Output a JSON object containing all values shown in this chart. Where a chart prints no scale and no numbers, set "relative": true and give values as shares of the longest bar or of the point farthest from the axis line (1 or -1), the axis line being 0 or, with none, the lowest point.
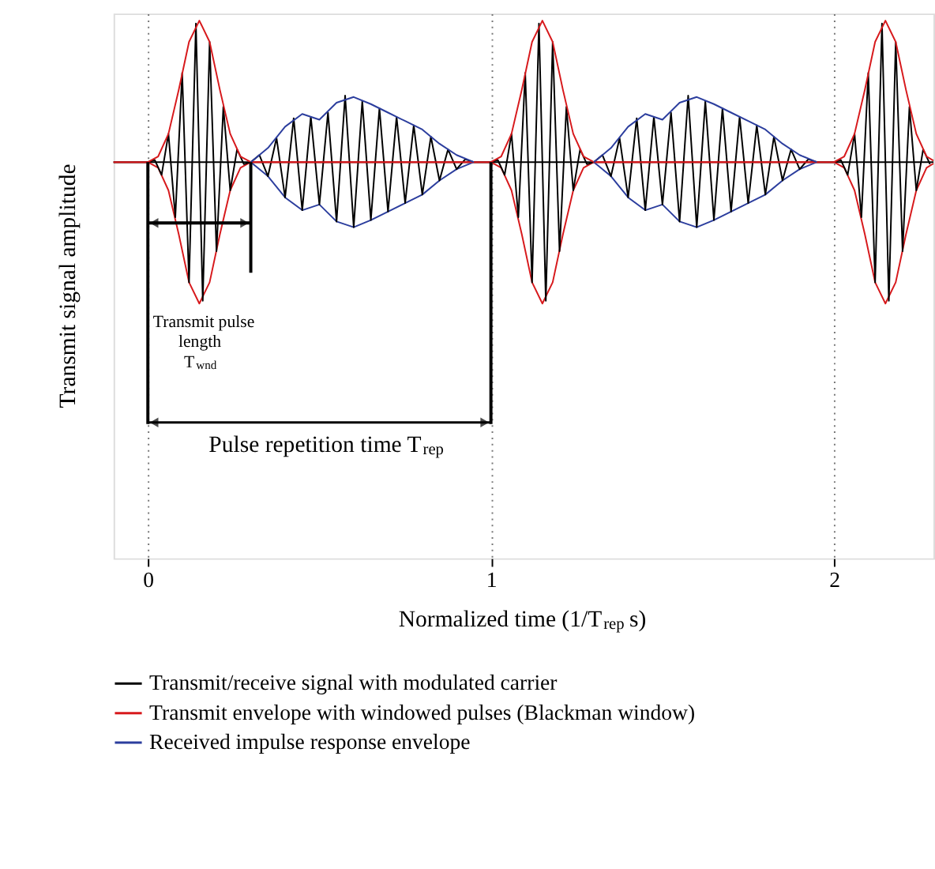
{
  "chart_data": {
    "type": "line",
    "relative": true,
    "xlabel": "Normalized time (1/T$_{rep}$ s)",
    "ylabel": "Transmit signal amplitude",
    "xlim": [
      -0.1,
      2.29
    ],
    "xticks": [
      {
        "value": 0,
        "label": "0"
      },
      {
        "value": 1,
        "label": "1"
      },
      {
        "value": 2,
        "label": "2"
      }
    ],
    "grid": "x",
    "legend": "bottom",
    "line_style": "solid",
    "marker": "none",
    "series": [
      {
        "name": "Transmit/receive signal with modulated carrier",
        "color": "#000000",
        "x": [
          -0.1,
          0,
          0.02,
          0.04,
          0.06,
          0.08,
          0.1,
          0.12,
          0.14,
          0.16,
          0.18,
          0.2,
          0.22,
          0.24,
          0.26,
          0.28,
          0.3,
          0.325,
          0.35,
          0.375,
          0.4,
          0.425,
          0.45,
          0.475,
          0.5,
          0.525,
          0.55,
          0.575,
          0.6,
          0.625,
          0.65,
          0.675,
          0.7,
          0.725,
          0.75,
          0.775,
          0.8,
          0.825,
          0.85,
          0.875,
          0.9,
          0.925,
          0.95,
          1.0,
          1.02,
          1.04,
          1.06,
          1.08,
          1.1,
          1.12,
          1.14,
          1.16,
          1.18,
          1.2,
          1.22,
          1.24,
          1.26,
          1.28,
          1.3,
          1.325,
          1.35,
          1.375,
          1.4,
          1.425,
          1.45,
          1.475,
          1.5,
          1.525,
          1.55,
          1.575,
          1.6,
          1.625,
          1.65,
          1.675,
          1.7,
          1.725,
          1.75,
          1.775,
          1.8,
          1.825,
          1.85,
          1.875,
          1.9,
          1.925,
          1.95,
          2.0,
          2.02,
          2.04,
          2.06,
          2.08,
          2.1,
          2.12,
          2.14,
          2.16,
          2.18,
          2.2,
          2.22,
          2.24,
          2.26,
          2.28
        ],
        "values": [
          0,
          0,
          0.015,
          -0.09,
          0.2,
          -0.39,
          0.63,
          -0.85,
          0.98,
          -0.98,
          0.85,
          -0.63,
          0.39,
          -0.2,
          0.09,
          -0.015,
          0,
          0.05,
          -0.1,
          0.17,
          -0.25,
          0.31,
          -0.34,
          0.32,
          -0.3,
          0.35,
          -0.42,
          0.47,
          -0.46,
          0.43,
          -0.41,
          0.38,
          -0.35,
          0.32,
          -0.29,
          0.26,
          -0.23,
          0.18,
          -0.13,
          0.09,
          -0.05,
          0.02,
          0,
          0,
          0.015,
          -0.09,
          0.2,
          -0.39,
          0.63,
          -0.85,
          0.98,
          -0.98,
          0.85,
          -0.63,
          0.39,
          -0.2,
          0.09,
          -0.015,
          0,
          0.05,
          -0.1,
          0.17,
          -0.25,
          0.31,
          -0.34,
          0.32,
          -0.3,
          0.35,
          -0.42,
          0.47,
          -0.46,
          0.43,
          -0.41,
          0.38,
          -0.35,
          0.32,
          -0.29,
          0.26,
          -0.23,
          0.18,
          -0.13,
          0.09,
          -0.05,
          0.02,
          0,
          0,
          0.015,
          -0.09,
          0.2,
          -0.39,
          0.63,
          -0.85,
          0.98,
          -0.98,
          0.85,
          -0.63,
          0.39,
          -0.2,
          0.09,
          -0.015
        ]
      },
      {
        "name": "Transmit envelope with windowed pulses (Blackman window)",
        "color": "#d7191c",
        "x": [
          -0.1,
          0,
          0.03,
          0.06,
          0.09,
          0.12,
          0.15,
          0.18,
          0.21,
          0.24,
          0.27,
          0.3,
          1.0,
          1.03,
          1.06,
          1.09,
          1.12,
          1.15,
          1.18,
          1.21,
          1.24,
          1.27,
          1.3,
          2.0,
          2.03,
          2.06,
          2.09,
          2.12,
          2.15,
          2.18,
          2.21,
          2.24,
          2.27,
          2.29
        ],
        "values": [
          0,
          0,
          0.04,
          0.2,
          0.51,
          0.85,
          1,
          0.85,
          0.51,
          0.2,
          0.04,
          0,
          0,
          0.04,
          0.2,
          0.51,
          0.85,
          1,
          0.85,
          0.51,
          0.2,
          0.04,
          0,
          0,
          0.04,
          0.2,
          0.51,
          0.85,
          1,
          0.85,
          0.51,
          0.2,
          0.04,
          0.01
        ]
      },
      {
        "color": "#d7191c",
        "x": [
          -0.1,
          0,
          0.03,
          0.06,
          0.09,
          0.12,
          0.15,
          0.18,
          0.21,
          0.24,
          0.27,
          0.3,
          1.0,
          1.03,
          1.06,
          1.09,
          1.12,
          1.15,
          1.18,
          1.21,
          1.24,
          1.27,
          1.3,
          2.0,
          2.03,
          2.06,
          2.09,
          2.12,
          2.15,
          2.18,
          2.21,
          2.24,
          2.27,
          2.29
        ],
        "values": [
          0,
          0,
          -0.04,
          -0.2,
          -0.51,
          -0.85,
          -1,
          -0.85,
          -0.51,
          -0.2,
          -0.04,
          0,
          0,
          -0.04,
          -0.2,
          -0.51,
          -0.85,
          -1,
          -0.85,
          -0.51,
          -0.2,
          -0.04,
          0,
          0,
          -0.04,
          -0.2,
          -0.51,
          -0.85,
          -1,
          -0.85,
          -0.51,
          -0.2,
          -0.04,
          -0.01
        ]
      },
      {
        "name": "Received impulse response envelope",
        "color": "#2c3e9e",
        "x": [
          0.3,
          0.35,
          0.4,
          0.45,
          0.5,
          0.55,
          0.6,
          0.65,
          0.7,
          0.75,
          0.8,
          0.85,
          0.9,
          0.95,
          1.1,
          1.3,
          1.35,
          1.4,
          1.45,
          1.5,
          1.55,
          1.6,
          1.65,
          1.7,
          1.75,
          1.8,
          1.85,
          1.9,
          1.95
        ],
        "values": [
          0,
          0.1,
          0.25,
          0.34,
          0.3,
          0.42,
          0.46,
          0.41,
          0.35,
          0.29,
          0.23,
          0.13,
          0.05,
          0,
          null,
          0,
          0.1,
          0.25,
          0.34,
          0.3,
          0.42,
          0.46,
          0.41,
          0.35,
          0.29,
          0.23,
          0.13,
          0.05,
          0
        ]
      },
      {
        "color": "#2c3e9e",
        "x": [
          0.3,
          0.35,
          0.4,
          0.45,
          0.5,
          0.55,
          0.6,
          0.65,
          0.7,
          0.75,
          0.8,
          0.85,
          0.9,
          0.95,
          1.1,
          1.3,
          1.35,
          1.4,
          1.45,
          1.5,
          1.55,
          1.6,
          1.65,
          1.7,
          1.75,
          1.8,
          1.85,
          1.9,
          1.95
        ],
        "values": [
          0,
          -0.1,
          -0.25,
          -0.34,
          -0.3,
          -0.42,
          -0.46,
          -0.41,
          -0.35,
          -0.29,
          -0.23,
          -0.13,
          -0.05,
          0,
          null,
          0,
          -0.1,
          -0.25,
          -0.34,
          -0.3,
          -0.42,
          -0.46,
          -0.41,
          -0.35,
          -0.29,
          -0.23,
          -0.13,
          -0.05,
          0
        ]
      }
    ],
    "annotations": [
      "Transmit pulse length T$_{wnd}$",
      "Pulse repetition time T$_{rep}$"
    ]
  }
}
